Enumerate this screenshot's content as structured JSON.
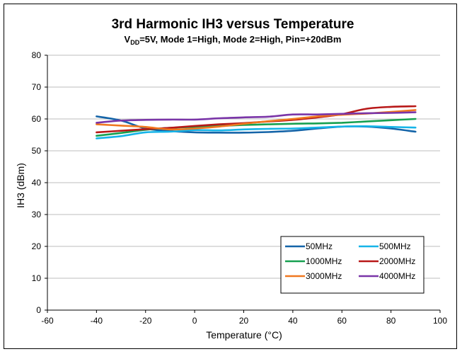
{
  "chart_data": {
    "type": "line",
    "title": "3rd Harmonic IH3 versus Temperature",
    "subtitle": {
      "prefix": "V",
      "subscript": "DD",
      "rest": "=5V, Mode 1=High, Mode 2=High, Pin=+20dBm"
    },
    "xlabel": "Temperature (°C)",
    "ylabel": "IH3 (dBm)",
    "xlim": [
      -60,
      100
    ],
    "ylim": [
      0,
      80
    ],
    "xticks": [
      "-60",
      "-40",
      "-20",
      "0",
      "20",
      "40",
      "60",
      "80",
      "100"
    ],
    "yticks": [
      "0",
      "10",
      "20",
      "30",
      "40",
      "50",
      "60",
      "70",
      "80"
    ],
    "grid": true,
    "legend_position": "bottom-right",
    "series": [
      {
        "name": "50MHz",
        "color": "#1464a8",
        "points": [
          [
            -40,
            60.8
          ],
          [
            -30,
            59.5
          ],
          [
            -20,
            57.0
          ],
          [
            -10,
            56.2
          ],
          [
            0,
            55.8
          ],
          [
            10,
            55.7
          ],
          [
            20,
            55.7
          ],
          [
            30,
            55.9
          ],
          [
            40,
            56.3
          ],
          [
            50,
            57.0
          ],
          [
            60,
            57.6
          ],
          [
            70,
            57.6
          ],
          [
            80,
            57.0
          ],
          [
            90,
            56.0
          ]
        ]
      },
      {
        "name": "500MHz",
        "color": "#16b4e8",
        "points": [
          [
            -40,
            53.9
          ],
          [
            -30,
            54.6
          ],
          [
            -20,
            55.8
          ],
          [
            -10,
            56.0
          ],
          [
            0,
            56.5
          ],
          [
            10,
            56.4
          ],
          [
            20,
            56.7
          ],
          [
            30,
            56.9
          ],
          [
            40,
            57.0
          ],
          [
            50,
            57.3
          ],
          [
            60,
            57.6
          ],
          [
            70,
            57.7
          ],
          [
            80,
            57.5
          ],
          [
            90,
            57.3
          ]
        ]
      },
      {
        "name": "1000MHz",
        "color": "#16a050",
        "points": [
          [
            -40,
            54.7
          ],
          [
            -30,
            55.6
          ],
          [
            -20,
            56.6
          ],
          [
            -10,
            57.2
          ],
          [
            0,
            57.5
          ],
          [
            10,
            57.8
          ],
          [
            20,
            58.1
          ],
          [
            30,
            58.3
          ],
          [
            40,
            58.5
          ],
          [
            50,
            58.6
          ],
          [
            60,
            58.8
          ],
          [
            70,
            59.2
          ],
          [
            80,
            59.6
          ],
          [
            90,
            60.0
          ]
        ]
      },
      {
        "name": "2000MHz",
        "color": "#b81818",
        "points": [
          [
            -40,
            55.8
          ],
          [
            -30,
            56.3
          ],
          [
            -20,
            56.8
          ],
          [
            -10,
            57.2
          ],
          [
            0,
            57.8
          ],
          [
            10,
            58.3
          ],
          [
            20,
            58.7
          ],
          [
            30,
            59.2
          ],
          [
            40,
            59.7
          ],
          [
            50,
            60.5
          ],
          [
            60,
            61.5
          ],
          [
            70,
            63.2
          ],
          [
            80,
            63.8
          ],
          [
            90,
            64.0
          ]
        ]
      },
      {
        "name": "3000MHz",
        "color": "#f07820",
        "points": [
          [
            -40,
            58.3
          ],
          [
            -30,
            57.9
          ],
          [
            -20,
            57.5
          ],
          [
            -10,
            56.7
          ],
          [
            0,
            57.0
          ],
          [
            10,
            57.6
          ],
          [
            20,
            58.5
          ],
          [
            30,
            59.3
          ],
          [
            40,
            60.0
          ],
          [
            50,
            60.8
          ],
          [
            60,
            61.3
          ],
          [
            70,
            61.7
          ],
          [
            80,
            62.2
          ],
          [
            90,
            62.8
          ]
        ]
      },
      {
        "name": "4000MHz",
        "color": "#7a35a8",
        "points": [
          [
            -40,
            58.8
          ],
          [
            -30,
            59.5
          ],
          [
            -20,
            59.7
          ],
          [
            -10,
            59.8
          ],
          [
            0,
            59.8
          ],
          [
            10,
            60.2
          ],
          [
            20,
            60.5
          ],
          [
            30,
            60.7
          ],
          [
            40,
            61.4
          ],
          [
            50,
            61.4
          ],
          [
            60,
            61.6
          ],
          [
            70,
            61.8
          ],
          [
            80,
            61.9
          ],
          [
            90,
            62.1
          ]
        ]
      }
    ]
  }
}
